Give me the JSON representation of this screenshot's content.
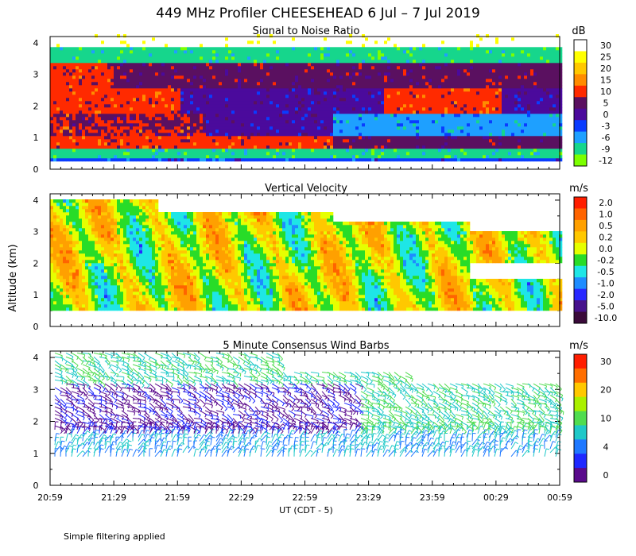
{
  "header": {
    "title": "449 MHz Profiler CHEESEHEAD  6 Jul –  7 Jul 2019"
  },
  "footer": {
    "note": "Simple filtering applied"
  },
  "chart_data": [
    {
      "type": "heatmap",
      "title": "Signal to Noise Ratio",
      "xlabel": "UT  (CDT - 5)",
      "ylabel": "Altitude (km)",
      "y_ticks": [
        "0",
        "1",
        "2",
        "3",
        "4"
      ],
      "ylim": [
        0,
        4.2
      ],
      "colorbar": {
        "unit": "dB",
        "labels": [
          "30",
          "25",
          "20",
          "15",
          "10",
          "5",
          "0",
          "-3",
          "-6",
          "-9",
          "-12"
        ],
        "colors": [
          "#ffffff",
          "#ffff00",
          "#ffc800",
          "#ff8c00",
          "#ff2a00",
          "#5a1060",
          "#4b0a9c",
          "#0a3cff",
          "#1ea0ff",
          "#16d68c",
          "#7cff00"
        ]
      }
    },
    {
      "type": "heatmap",
      "title": "Vertical Velocity",
      "xlabel": "UT  (CDT - 5)",
      "ylabel": "Altitude (km)",
      "y_ticks": [
        "0",
        "1",
        "2",
        "3",
        "4"
      ],
      "ylim": [
        0,
        4.2
      ],
      "colorbar": {
        "unit": "m/s",
        "labels": [
          "2.0",
          "1.0",
          "0.5",
          "0.2",
          "0.0",
          "-0.2",
          "-0.5",
          "-1.0",
          "-2.0",
          "-5.0",
          "-10.0"
        ],
        "colors": [
          "#ff1e00",
          "#ff6400",
          "#ffa000",
          "#ffc800",
          "#e6ff00",
          "#28dc28",
          "#1ee6e6",
          "#1e8cff",
          "#2828ff",
          "#46128c",
          "#3a0a3a"
        ]
      }
    },
    {
      "type": "heatmap",
      "title": "5 Minute Consensus Wind Barbs",
      "xlabel": "UT  (CDT - 5)",
      "ylabel": "Altitude (km)",
      "y_ticks": [
        "0",
        "1",
        "2",
        "3",
        "4"
      ],
      "ylim": [
        0,
        4.2
      ],
      "colorbar": {
        "unit": "m/s",
        "labels": [
          "30",
          "20",
          "10",
          "4",
          "0"
        ],
        "colors": [
          "#ff1e00",
          "#ff6e00",
          "#ffc800",
          "#aaf000",
          "#50dc50",
          "#1ec8c8",
          "#1e78ff",
          "#1e28ff",
          "#5a0a8c"
        ]
      }
    }
  ],
  "x_ticks": [
    "20:59",
    "21:29",
    "21:59",
    "22:29",
    "22:59",
    "23:29",
    "23:59",
    "00:29",
    "00:59"
  ],
  "axis_title_y": "Altitude (km)",
  "axis_title_x": "UT  (CDT - 5)"
}
